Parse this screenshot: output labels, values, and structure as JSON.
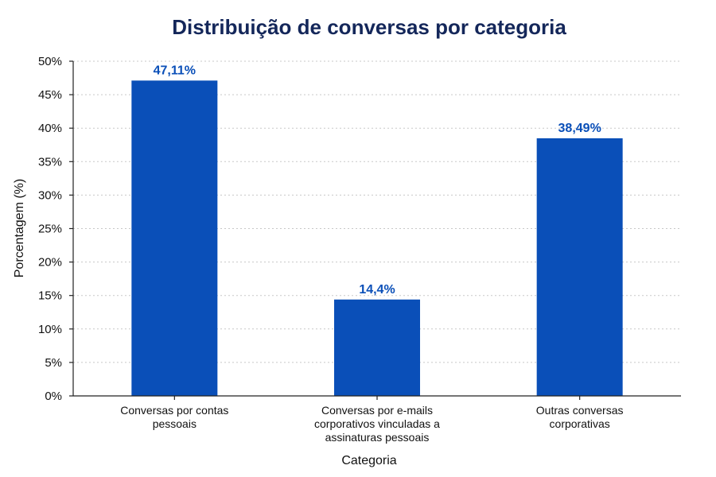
{
  "chart_data": {
    "type": "bar",
    "title": "Distribuição de conversas por categoria",
    "xlabel": "Categoria",
    "ylabel": "Porcentagem (%)",
    "categories": [
      [
        "Conversas por contas",
        "pessoais"
      ],
      [
        "Conversas por e-mails",
        "corporativos vinculadas a",
        "assinaturas pessoais"
      ],
      [
        "Outras conversas",
        "corporativas"
      ]
    ],
    "values": [
      47.11,
      14.4,
      38.49
    ],
    "value_labels": [
      "47,11%",
      "14,4%",
      "38,49%"
    ],
    "ylim": [
      0,
      50
    ],
    "yticks": [
      0,
      5,
      10,
      15,
      20,
      25,
      30,
      35,
      40,
      45,
      50
    ],
    "ytick_labels": [
      "0%",
      "5%",
      "10%",
      "15%",
      "20%",
      "25%",
      "30%",
      "35%",
      "40%",
      "45%",
      "50%"
    ],
    "grid": true,
    "legend": false
  },
  "colors": {
    "bar": "#0a4fb8",
    "data_label": "#0a4fb8",
    "title": "#14275a"
  }
}
